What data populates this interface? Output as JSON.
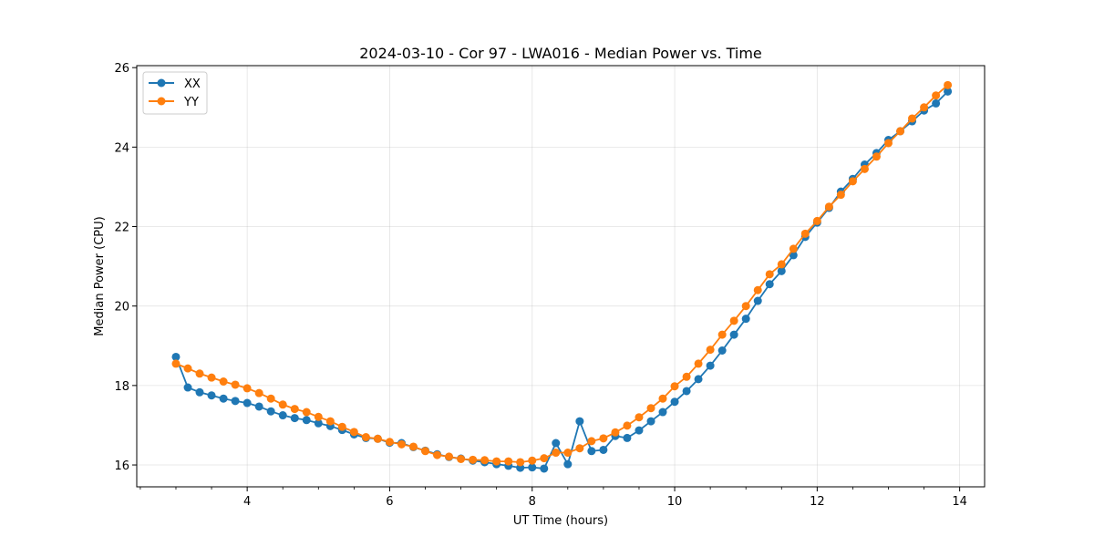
{
  "chart_data": {
    "type": "line",
    "title": "2024-03-10 - Cor 97 - LWA016 - Median Power vs. Time",
    "xlabel": "UT Time (hours)",
    "ylabel": "Median Power (CPU)",
    "xlim": [
      2.45,
      14.35
    ],
    "ylim": [
      15.45,
      26.05
    ],
    "xticks": [
      4,
      6,
      8,
      10,
      12,
      14
    ],
    "xtick_labels": [
      "4",
      "6",
      "8",
      "10",
      "12",
      "14"
    ],
    "xminor_step": 0.5,
    "yticks": [
      16,
      18,
      20,
      22,
      24,
      26
    ],
    "ytick_labels": [
      "16",
      "18",
      "20",
      "22",
      "24",
      "26"
    ],
    "grid": true,
    "legend_position": "top-left",
    "x": [
      3.0,
      3.167,
      3.333,
      3.5,
      3.667,
      3.833,
      4.0,
      4.167,
      4.333,
      4.5,
      4.667,
      4.833,
      5.0,
      5.167,
      5.333,
      5.5,
      5.667,
      5.833,
      6.0,
      6.167,
      6.333,
      6.5,
      6.667,
      6.833,
      7.0,
      7.167,
      7.333,
      7.5,
      7.667,
      7.833,
      8.0,
      8.167,
      8.333,
      8.5,
      8.667,
      8.833,
      9.0,
      9.167,
      9.333,
      9.5,
      9.667,
      9.833,
      10.0,
      10.167,
      10.333,
      10.5,
      10.667,
      10.833,
      11.0,
      11.167,
      11.333,
      11.5,
      11.667,
      11.833,
      12.0,
      12.167,
      12.333,
      12.5,
      12.667,
      12.833,
      13.0,
      13.167,
      13.333,
      13.5,
      13.667,
      13.833
    ],
    "series": [
      {
        "name": "XX",
        "color": "#1f77b4",
        "values": [
          18.72,
          17.95,
          17.83,
          17.75,
          17.67,
          17.61,
          17.56,
          17.47,
          17.35,
          17.25,
          17.18,
          17.13,
          17.05,
          16.98,
          16.88,
          16.77,
          16.68,
          16.66,
          16.56,
          16.55,
          16.45,
          16.36,
          16.27,
          16.2,
          16.16,
          16.11,
          16.07,
          16.02,
          15.98,
          15.93,
          15.94,
          15.91,
          16.55,
          16.02,
          17.1,
          16.35,
          16.38,
          16.73,
          16.68,
          16.87,
          17.1,
          17.33,
          17.59,
          17.86,
          18.16,
          18.5,
          18.88,
          19.28,
          19.68,
          20.13,
          20.55,
          20.88,
          21.28,
          21.74,
          22.1,
          22.47,
          22.88,
          23.2,
          23.56,
          23.85,
          24.18,
          24.4,
          24.65,
          24.92,
          25.1,
          25.4
        ]
      },
      {
        "name": "YY",
        "color": "#ff7f0e",
        "values": [
          18.55,
          18.43,
          18.3,
          18.2,
          18.1,
          18.02,
          17.93,
          17.81,
          17.67,
          17.52,
          17.41,
          17.33,
          17.21,
          17.1,
          16.96,
          16.83,
          16.7,
          16.66,
          16.58,
          16.52,
          16.46,
          16.35,
          16.25,
          16.21,
          16.15,
          16.13,
          16.12,
          16.09,
          16.09,
          16.07,
          16.11,
          16.17,
          16.31,
          16.31,
          16.42,
          16.6,
          16.67,
          16.82,
          16.99,
          17.2,
          17.43,
          17.67,
          17.98,
          18.22,
          18.55,
          18.9,
          19.28,
          19.63,
          20.0,
          20.4,
          20.8,
          21.05,
          21.44,
          21.82,
          22.14,
          22.5,
          22.8,
          23.14,
          23.45,
          23.76,
          24.1,
          24.4,
          24.72,
          25.0,
          25.3,
          25.56
        ]
      }
    ]
  }
}
